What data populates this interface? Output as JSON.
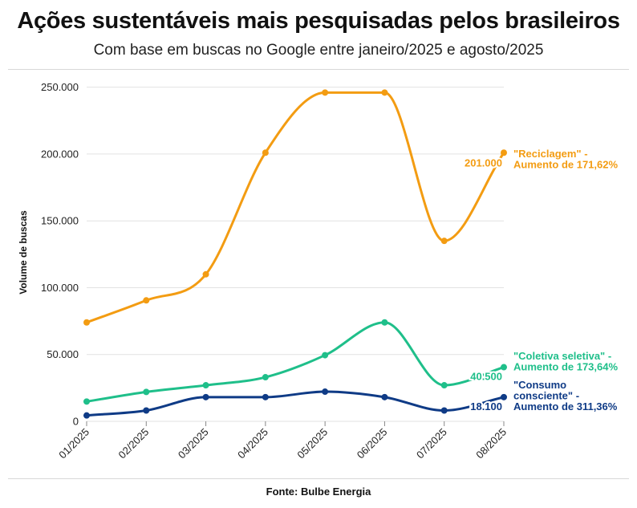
{
  "header": {
    "title": "Ações sustentáveis mais pesquisadas pelos brasileiros",
    "subtitle": "Com base em buscas no Google entre janeiro/2025 e agosto/2025"
  },
  "footer": {
    "source": "Fonte: Bulbe Energia"
  },
  "chart_data": {
    "type": "line",
    "title": "Ações sustentáveis mais pesquisadas pelos brasileiros",
    "subtitle": "Com base em buscas no Google entre janeiro/2025 e agosto/2025",
    "xlabel": "",
    "ylabel": "Volume de buscas",
    "x": [
      "01/2025",
      "02/2025",
      "03/2025",
      "04/2025",
      "05/2025",
      "06/2025",
      "07/2025",
      "08/2025"
    ],
    "ylim": [
      0,
      260000
    ],
    "yticks": [
      0,
      50000,
      100000,
      150000,
      200000,
      250000
    ],
    "ytick_labels": [
      "0",
      "50.000",
      "100.000",
      "150.000",
      "200.000",
      "250.000"
    ],
    "grid": "horizontal",
    "series": [
      {
        "name": "Reciclagem",
        "color": "#F39C12",
        "values": [
          74000,
          90500,
          110000,
          201000,
          246000,
          246000,
          135000,
          201000
        ],
        "end_value_label": "201.000",
        "annotation": [
          "\"Reciclagem\" -",
          "Aumento de 171,62%"
        ]
      },
      {
        "name": "Coletiva seletiva",
        "color": "#1FBF8A",
        "values": [
          14800,
          22000,
          27000,
          33000,
          49500,
          74000,
          27000,
          40500
        ],
        "end_value_label": "40.500",
        "annotation": [
          "\"Coletiva seletiva\" -",
          "Aumento de 173,64%"
        ]
      },
      {
        "name": "Consumo consciente",
        "color": "#0F3B86",
        "values": [
          4400,
          8100,
          18100,
          18100,
          22200,
          18100,
          8100,
          18100
        ],
        "end_value_label": "18.100",
        "annotation": [
          "\"Consumo",
          "consciente\" -",
          "Aumento de 311,36%"
        ]
      }
    ]
  }
}
